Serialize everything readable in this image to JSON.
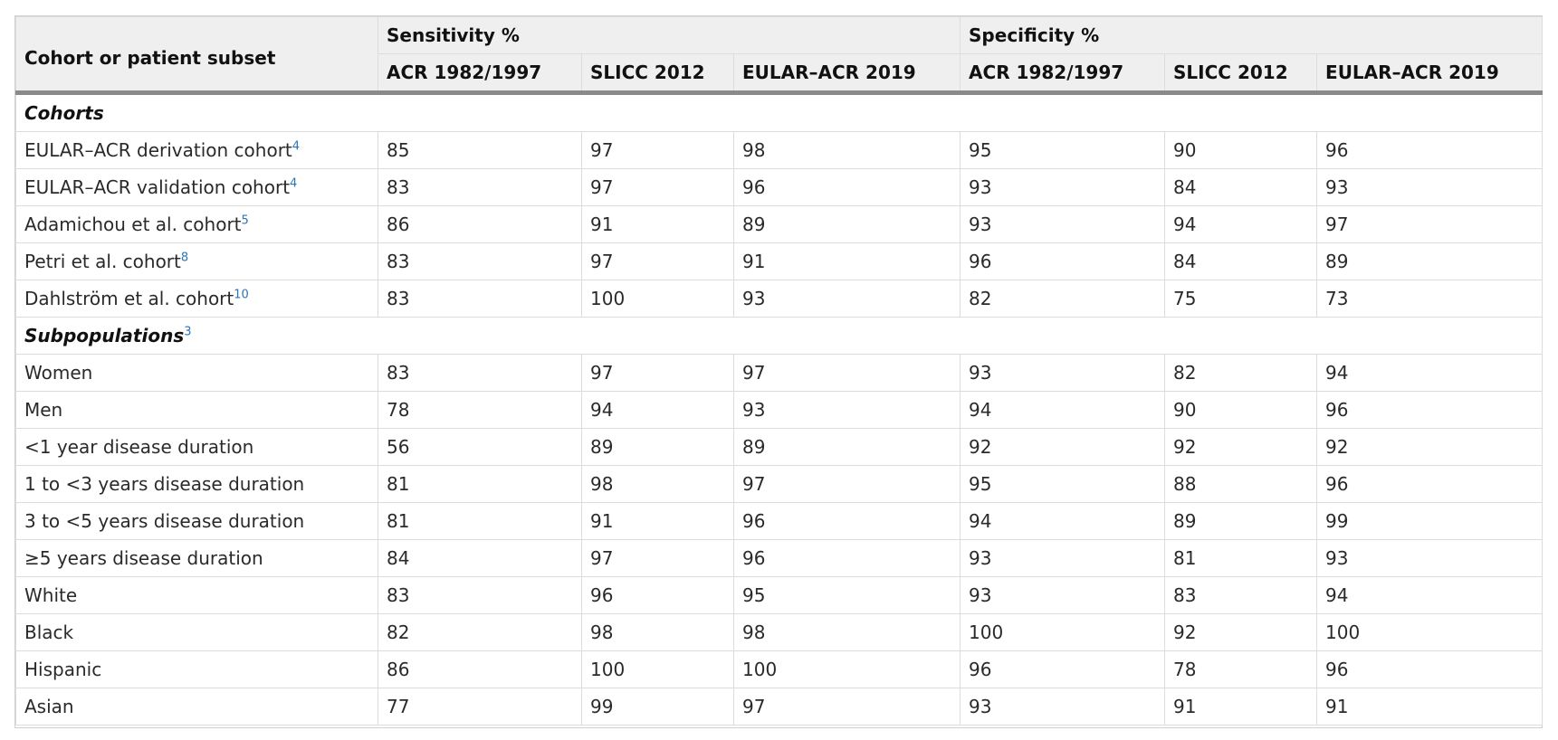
{
  "header": {
    "row_label": "Cohort or patient subset",
    "groups": [
      "Sensitivity %",
      "Specificity %"
    ],
    "sub_columns": [
      "ACR 1982/1997",
      "SLICC 2012",
      "EULAR–ACR 2019",
      "ACR 1982/1997",
      "SLICC 2012",
      "EULAR–ACR 2019"
    ]
  },
  "sections": [
    {
      "title": "Cohorts",
      "ref": "",
      "rows": [
        {
          "label": "EULAR–ACR derivation cohort",
          "ref": "4",
          "values": [
            "85",
            "97",
            "98",
            "95",
            "90",
            "96"
          ]
        },
        {
          "label": "EULAR–ACR validation cohort",
          "ref": "4",
          "values": [
            "83",
            "97",
            "96",
            "93",
            "84",
            "93"
          ]
        },
        {
          "label": "Adamichou et al. cohort",
          "ref": "5",
          "values": [
            "86",
            "91",
            "89",
            "93",
            "94",
            "97"
          ]
        },
        {
          "label": "Petri et al. cohort",
          "ref": "8",
          "values": [
            "83",
            "97",
            "91",
            "96",
            "84",
            "89"
          ]
        },
        {
          "label": "Dahlström et al. cohort",
          "ref": "10",
          "values": [
            "83",
            "100",
            "93",
            "82",
            "75",
            "73"
          ]
        }
      ]
    },
    {
      "title": "Subpopulations",
      "ref": "3",
      "rows": [
        {
          "label": "Women",
          "ref": "",
          "values": [
            "83",
            "97",
            "97",
            "93",
            "82",
            "94"
          ]
        },
        {
          "label": "Men",
          "ref": "",
          "values": [
            "78",
            "94",
            "93",
            "94",
            "90",
            "96"
          ]
        },
        {
          "label": "<1 year disease duration",
          "ref": "",
          "values": [
            "56",
            "89",
            "89",
            "92",
            "92",
            "92"
          ]
        },
        {
          "label": "1 to <3 years disease duration",
          "ref": "",
          "values": [
            "81",
            "98",
            "97",
            "95",
            "88",
            "96"
          ]
        },
        {
          "label": "3 to <5 years disease duration",
          "ref": "",
          "values": [
            "81",
            "91",
            "96",
            "94",
            "89",
            "99"
          ]
        },
        {
          "label": "≥5 years disease duration",
          "ref": "",
          "values": [
            "84",
            "97",
            "96",
            "93",
            "81",
            "93"
          ]
        },
        {
          "label": "White",
          "ref": "",
          "values": [
            "83",
            "96",
            "95",
            "93",
            "83",
            "94"
          ]
        },
        {
          "label": "Black",
          "ref": "",
          "values": [
            "82",
            "98",
            "98",
            "100",
            "92",
            "100"
          ]
        },
        {
          "label": "Hispanic",
          "ref": "",
          "values": [
            "86",
            "100",
            "100",
            "96",
            "78",
            "96"
          ]
        },
        {
          "label": "Asian",
          "ref": "",
          "values": [
            "77",
            "99",
            "97",
            "93",
            "91",
            "91"
          ]
        }
      ]
    }
  ],
  "colors": {
    "header_bg": "#efefef",
    "border": "#dcdcdc",
    "header_rule": "#8a8a8a",
    "ref_link": "#2a74b8"
  }
}
